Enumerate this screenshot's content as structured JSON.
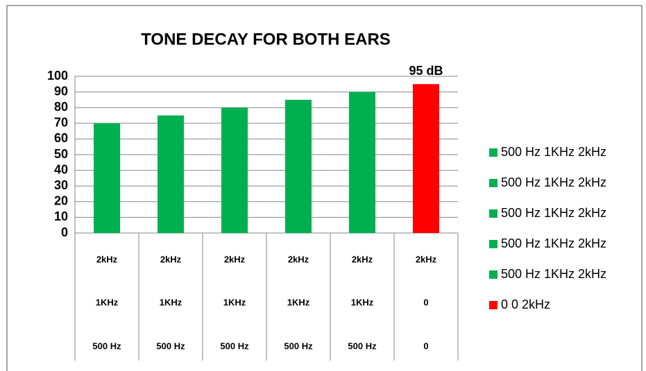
{
  "chart_data": {
    "type": "bar",
    "title": "TONE DECAY FOR BOTH EARS",
    "categories": [
      [
        "2kHz",
        "1KHz",
        "500 Hz"
      ],
      [
        "2kHz",
        "1KHz",
        "500 Hz"
      ],
      [
        "2kHz",
        "1KHz",
        "500 Hz"
      ],
      [
        "2kHz",
        "1KHz",
        "500 Hz"
      ],
      [
        "2kHz",
        "1KHz",
        "500 Hz"
      ],
      [
        "2kHz",
        "0",
        "0"
      ]
    ],
    "values": [
      70,
      75,
      80,
      85,
      90,
      95
    ],
    "value_labels": [
      null,
      null,
      null,
      null,
      null,
      "95 dB"
    ],
    "colors": [
      "#00b050",
      "#00b050",
      "#00b050",
      "#00b050",
      "#00b050",
      "#ff0000"
    ],
    "legend": [
      "500 Hz 1KHz 2kHz",
      "500 Hz 1KHz 2kHz",
      "500 Hz 1KHz 2kHz",
      "500 Hz 1KHz 2kHz",
      "500 Hz 1KHz 2kHz",
      "0 0 2kHz"
    ],
    "ylim": [
      0,
      100
    ],
    "yticks": [
      0,
      10,
      20,
      30,
      40,
      50,
      60,
      70,
      80,
      90,
      100
    ],
    "grid": true
  }
}
